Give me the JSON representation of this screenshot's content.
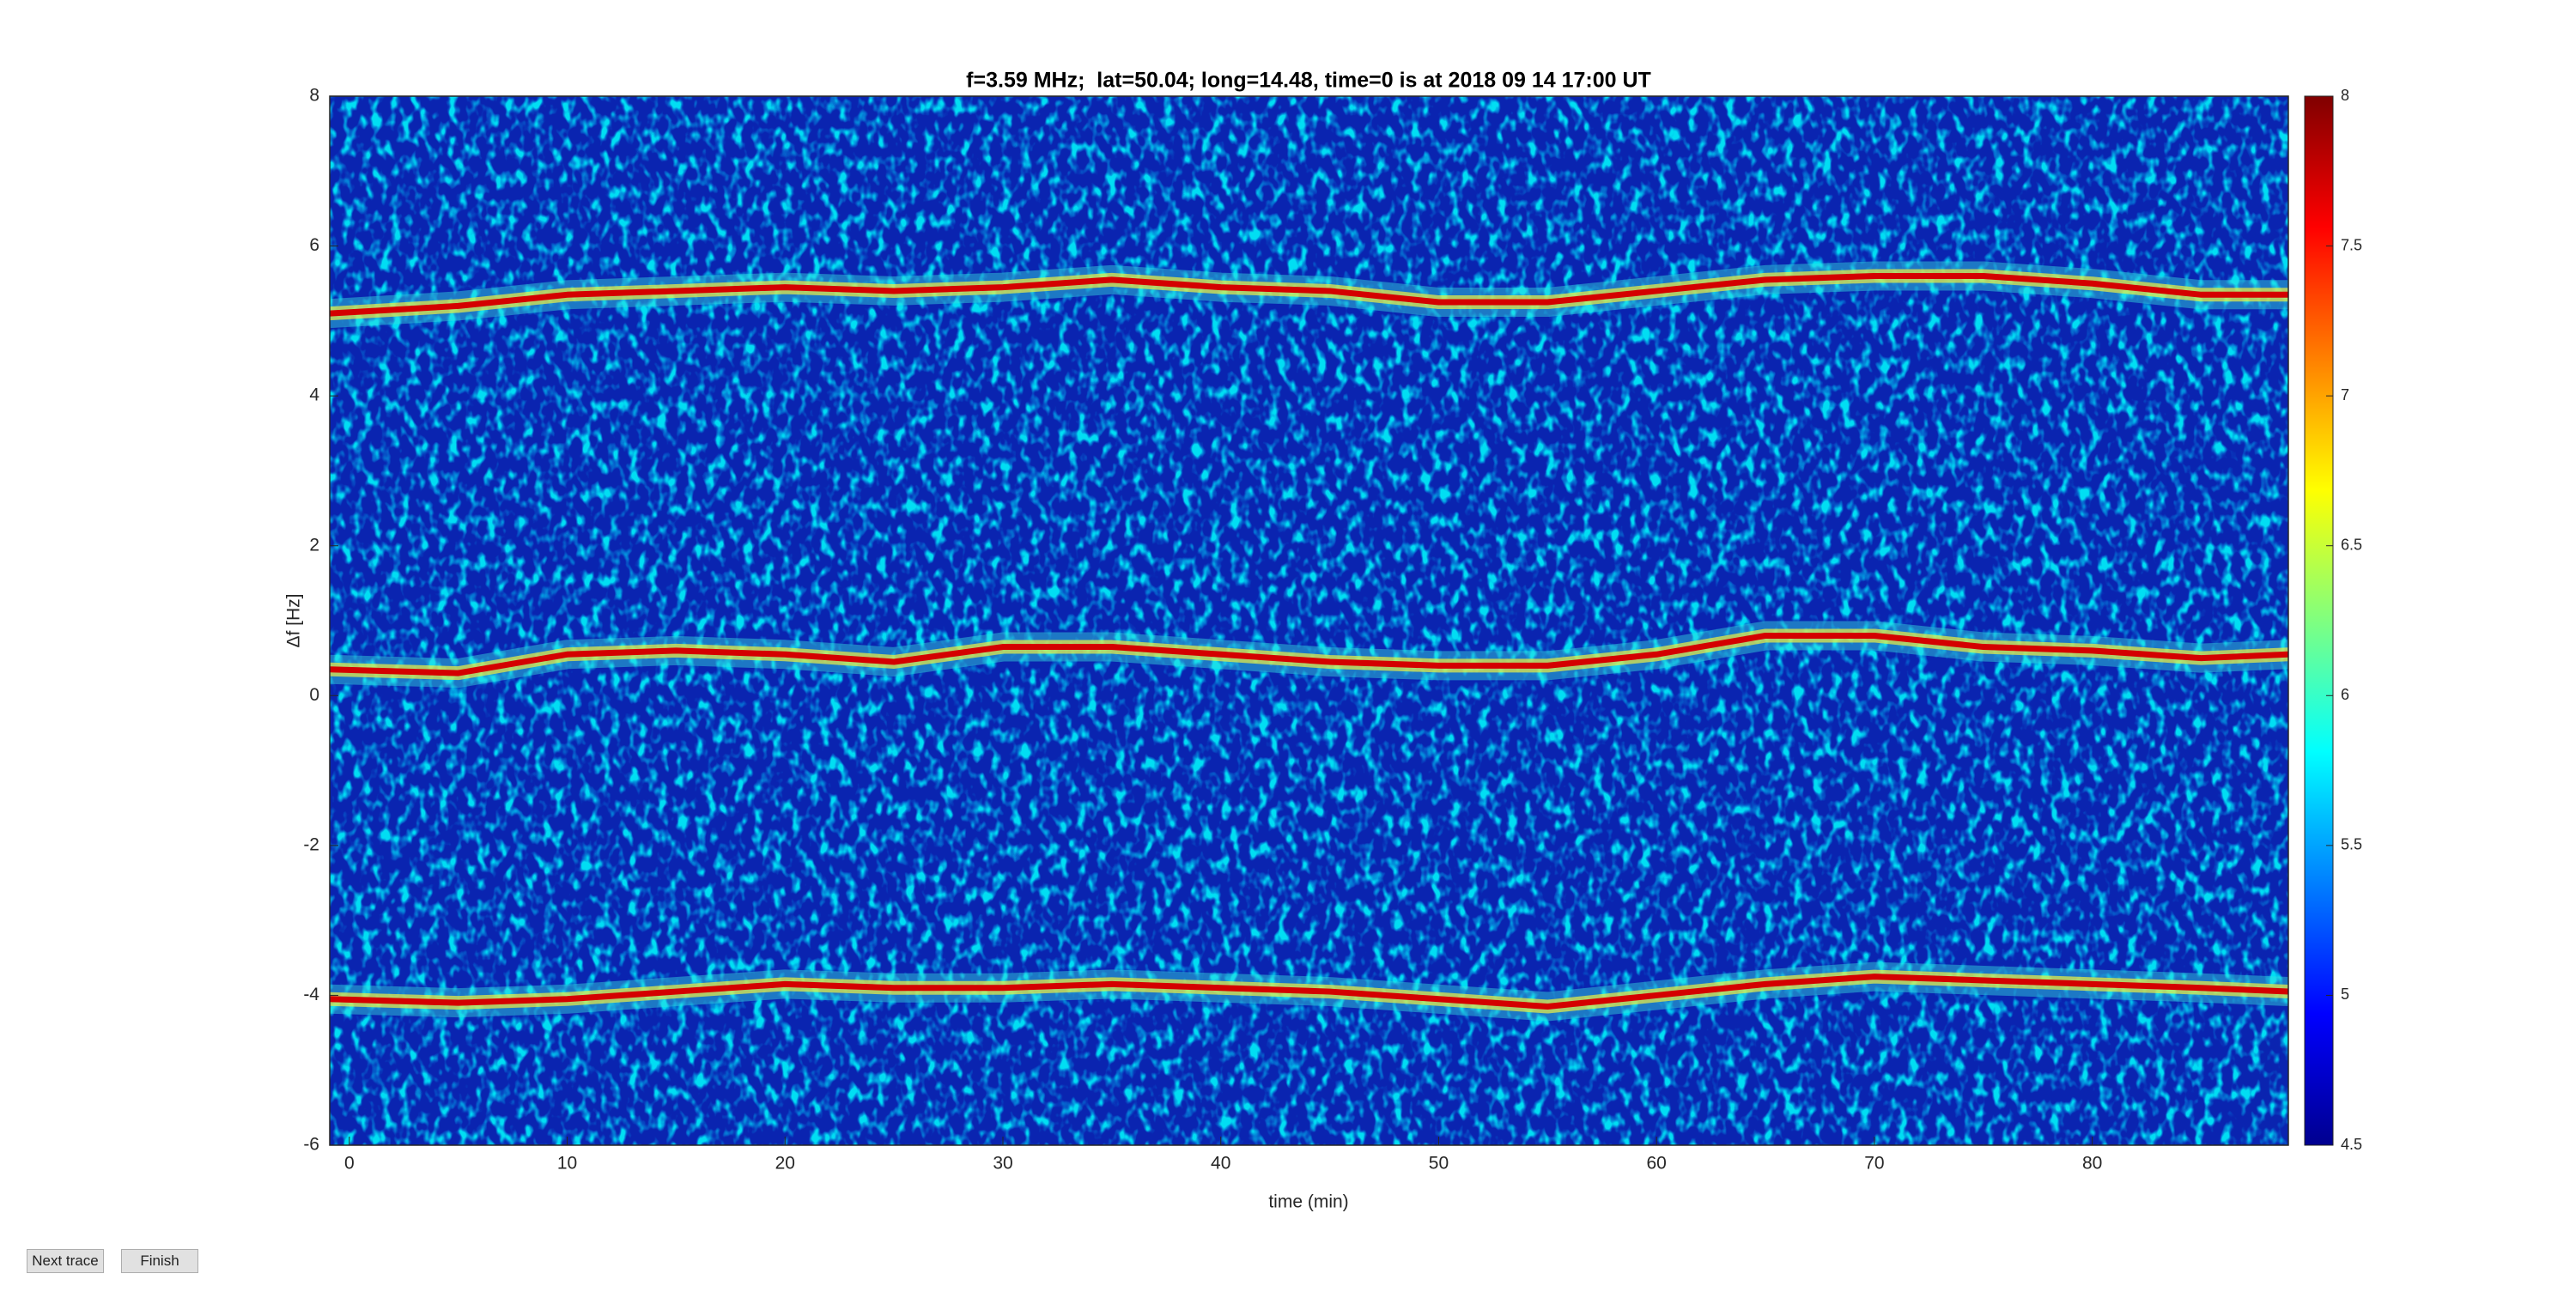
{
  "chart_data": {
    "type": "spectrogram",
    "title": "f=3.59 MHz;  lat=50.04; long=14.48, time=0 is at 2018 09 14 17:00 UT",
    "x_label": "time (min)",
    "y_label": "Δf [Hz]",
    "x": [
      -0.9,
      5,
      10,
      15,
      20,
      25,
      30,
      35,
      40,
      45,
      50,
      55,
      60,
      65,
      70,
      75,
      80,
      85,
      89
    ],
    "series": [
      {
        "color": "#d40000",
        "values": [
          5.1,
          5.2,
          5.35,
          5.4,
          5.45,
          5.4,
          5.45,
          5.55,
          5.45,
          5.4,
          5.25,
          5.25,
          5.4,
          5.55,
          5.6,
          5.6,
          5.5,
          5.35,
          5.35
        ]
      },
      {
        "color": "#d40000",
        "values": [
          0.35,
          0.3,
          0.55,
          0.6,
          0.55,
          0.45,
          0.65,
          0.65,
          0.55,
          0.45,
          0.4,
          0.4,
          0.55,
          0.8,
          0.8,
          0.65,
          0.6,
          0.5,
          0.55
        ]
      },
      {
        "color": "#d40000",
        "values": [
          -4.05,
          -4.1,
          -4.05,
          -3.95,
          -3.85,
          -3.9,
          -3.9,
          -3.85,
          -3.9,
          -3.95,
          -4.05,
          -4.15,
          -4.0,
          -3.85,
          -3.75,
          -3.8,
          -3.85,
          -3.9,
          -3.95
        ]
      }
    ],
    "xlim": [
      -0.9,
      89
    ],
    "xticks": [
      0,
      10,
      20,
      30,
      40,
      50,
      60,
      70,
      80
    ],
    "ylim": [
      -6,
      8
    ],
    "yticks": [
      -6,
      -4,
      -2,
      0,
      2,
      4,
      6,
      8
    ],
    "clim": [
      4.5,
      8
    ],
    "cticks": [
      4.5,
      5,
      5.5,
      6,
      6.5,
      7,
      7.5,
      8
    ],
    "colormap": "jet"
  },
  "buttons": [
    "Next trace",
    "Finish"
  ]
}
